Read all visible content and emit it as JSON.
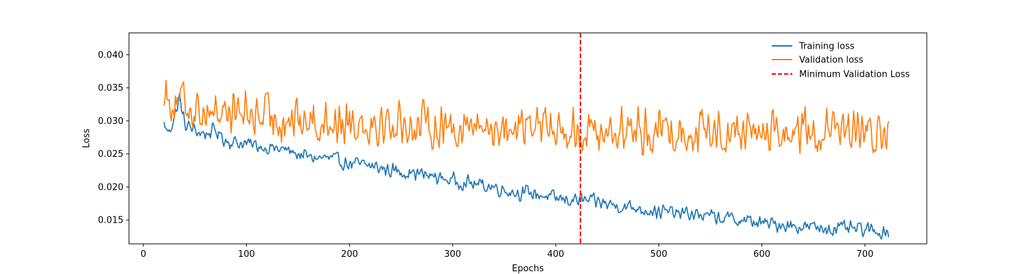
{
  "chart_data": {
    "type": "line",
    "title": "",
    "xlabel": "Epochs",
    "ylabel": "Loss",
    "xlim": [
      -14,
      760
    ],
    "ylim": [
      0.0114,
      0.0433
    ],
    "x_ticks": [
      0,
      100,
      200,
      300,
      400,
      500,
      600,
      700
    ],
    "x_tick_labels": [
      "0",
      "100",
      "200",
      "300",
      "400",
      "500",
      "600",
      "700"
    ],
    "y_ticks": [
      0.015,
      0.02,
      0.025,
      0.03,
      0.035,
      0.04
    ],
    "y_tick_labels": [
      "0.015",
      "0.020",
      "0.025",
      "0.030",
      "0.035",
      "0.040"
    ],
    "grid": false,
    "legend_position": "top-right",
    "x_start": 20,
    "x_end": 723,
    "series": [
      {
        "name": "Training loss",
        "color": "#1f77b4",
        "style": "solid",
        "anchors": [
          [
            20,
            0.0295
          ],
          [
            24,
            0.0282
          ],
          [
            30,
            0.0305
          ],
          [
            35,
            0.0335
          ],
          [
            40,
            0.0295
          ],
          [
            50,
            0.0285
          ],
          [
            60,
            0.028
          ],
          [
            70,
            0.0285
          ],
          [
            80,
            0.027
          ],
          [
            100,
            0.0265
          ],
          [
            120,
            0.026
          ],
          [
            140,
            0.0255
          ],
          [
            160,
            0.0245
          ],
          [
            180,
            0.0243
          ],
          [
            200,
            0.0235
          ],
          [
            220,
            0.0232
          ],
          [
            240,
            0.0225
          ],
          [
            260,
            0.0222
          ],
          [
            280,
            0.0216
          ],
          [
            300,
            0.021
          ],
          [
            320,
            0.0205
          ],
          [
            340,
            0.02
          ],
          [
            360,
            0.0192
          ],
          [
            380,
            0.019
          ],
          [
            400,
            0.0182
          ],
          [
            425,
            0.018
          ],
          [
            440,
            0.0177
          ],
          [
            460,
            0.0172
          ],
          [
            480,
            0.0168
          ],
          [
            500,
            0.0163
          ],
          [
            520,
            0.016
          ],
          [
            540,
            0.0158
          ],
          [
            560,
            0.0153
          ],
          [
            580,
            0.015
          ],
          [
            600,
            0.0145
          ],
          [
            620,
            0.0143
          ],
          [
            640,
            0.014
          ],
          [
            660,
            0.0138
          ],
          [
            680,
            0.0137
          ],
          [
            700,
            0.0135
          ],
          [
            723,
            0.0132
          ]
        ],
        "noise": 0.00085
      },
      {
        "name": "Validation loss",
        "color": "#ff7f0e",
        "style": "solid",
        "anchors": [
          [
            20,
            0.0345
          ],
          [
            30,
            0.033
          ],
          [
            50,
            0.032
          ],
          [
            80,
            0.0315
          ],
          [
            100,
            0.031
          ],
          [
            130,
            0.0305
          ],
          [
            160,
            0.03
          ],
          [
            200,
            0.03
          ],
          [
            250,
            0.0295
          ],
          [
            300,
            0.0292
          ],
          [
            350,
            0.029
          ],
          [
            400,
            0.0288
          ],
          [
            425,
            0.0285
          ],
          [
            450,
            0.0285
          ],
          [
            500,
            0.0285
          ],
          [
            550,
            0.0285
          ],
          [
            600,
            0.0283
          ],
          [
            650,
            0.0283
          ],
          [
            700,
            0.028
          ],
          [
            723,
            0.028
          ]
        ],
        "noise": 0.0026
      }
    ],
    "vline": {
      "name": "Minimum Validation Loss",
      "x": 424,
      "color": "#ff0000",
      "style": "dashed"
    }
  }
}
